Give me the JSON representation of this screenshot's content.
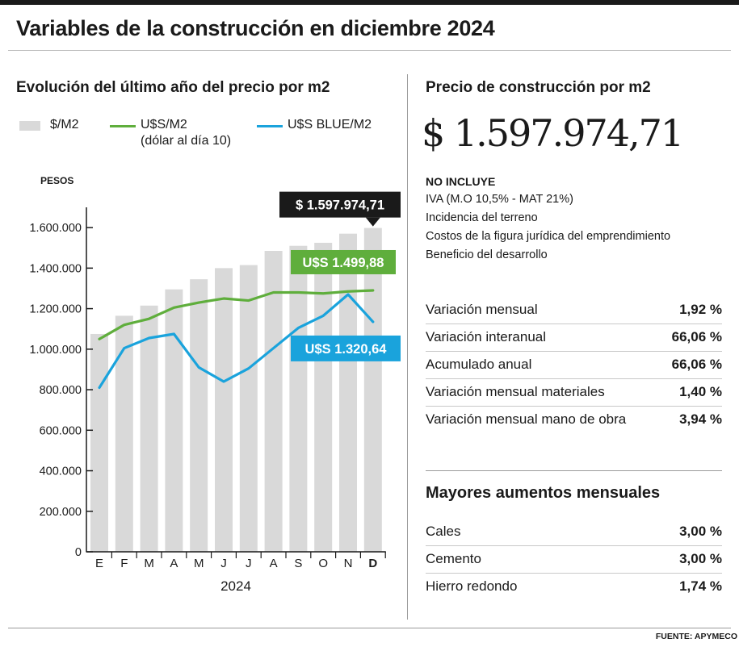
{
  "title": "Variables de la construcción en diciembre 2024",
  "left_panel": {
    "title": "Evolución del último año del precio por m2",
    "legend": {
      "bars": "$/M2",
      "usd": "U$S/M2",
      "usd_note": "(dólar al día 10)",
      "blue": "U$S BLUE/M2"
    },
    "callouts": {
      "bars": "$ 1.597.974,71",
      "usd": "U$S 1.499,88",
      "blue": "U$S 1.320,64"
    }
  },
  "right_panel": {
    "title": "Precio de construcción por m2",
    "price": "$ 1.597.974,71",
    "excludes_title": "NO INCLUYE",
    "excludes": [
      "IVA (M.O 10,5% - MAT 21%)",
      "Incidencia del terreno",
      "Costos de la figura jurídica del emprendimiento",
      "Beneficio del desarrollo"
    ],
    "stats": [
      {
        "label": "Variación mensual",
        "value": "1,92 %"
      },
      {
        "label": "Variación interanual",
        "value": "66,06 %"
      },
      {
        "label": "Acumulado anual",
        "value": "66,06 %"
      },
      {
        "label": "Variación mensual materiales",
        "value": "1,40 %"
      },
      {
        "label": "Variación mensual mano de obra",
        "value": "3,94 %"
      }
    ],
    "increases_title": "Mayores aumentos mensuales",
    "increases": [
      {
        "label": "Cales",
        "value": "3,00 %"
      },
      {
        "label": "Cemento",
        "value": "3,00 %"
      },
      {
        "label": "Hierro redondo",
        "value": "1,74 %"
      }
    ]
  },
  "source": "FUENTE: APYMECO",
  "colors": {
    "bar": "#d9d9d9",
    "usd_line": "#5fae3c",
    "blue_line": "#1aa3dc",
    "bar_callout_bg": "#1a1a1a"
  },
  "chart_data": {
    "type": "bar",
    "ylabel": "PESOS",
    "xlabel": "2024",
    "categories": [
      "E",
      "F",
      "M",
      "A",
      "M",
      "J",
      "J",
      "A",
      "S",
      "O",
      "N",
      "D"
    ],
    "highlight_category_index": 11,
    "ylim": [
      0,
      1700000
    ],
    "yticks": [
      0,
      200000,
      400000,
      600000,
      800000,
      1000000,
      1200000,
      1400000,
      1600000
    ],
    "ytick_labels": [
      "0",
      "200.000",
      "400.000",
      "600.000",
      "800.000",
      "1.000.000",
      "1.200.000",
      "1.400.000",
      "1.600.000"
    ],
    "series": [
      {
        "name": "$/M2",
        "type": "bar",
        "values": [
          1075000,
          1165000,
          1215000,
          1295000,
          1345000,
          1400000,
          1415000,
          1485000,
          1510000,
          1525000,
          1570000,
          1597974.71
        ]
      },
      {
        "name": "U$S/M2",
        "type": "line",
        "values": [
          1050000,
          1120000,
          1150000,
          1205000,
          1230000,
          1250000,
          1240000,
          1280000,
          1280000,
          1275000,
          1285000,
          1290000
        ]
      },
      {
        "name": "U$S BLUE/M2",
        "type": "line",
        "values": [
          810000,
          1005000,
          1055000,
          1075000,
          910000,
          840000,
          905000,
          1005000,
          1105000,
          1165000,
          1270000,
          1135000
        ]
      }
    ]
  }
}
